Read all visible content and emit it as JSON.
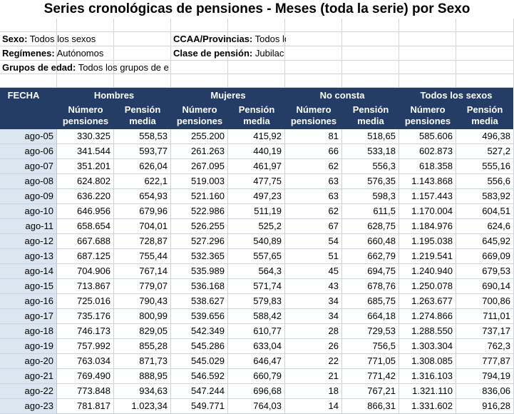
{
  "title": "Series cronológicas de pensiones - Meses (toda la serie) por Sexo",
  "filters": [
    {
      "label": "Sexo:",
      "value": "Todos los sexos"
    },
    {
      "label": "CCAA/Provincias:",
      "value": "Todos los centros"
    },
    {
      "label": "Regímenes:",
      "value": "Autónomos"
    },
    {
      "label": "Clase de pensión:",
      "value": "Jubilac"
    },
    {
      "label": "Grupos de edad:",
      "value": "Todos los grupos de e"
    }
  ],
  "table": {
    "first_header": "FECHA",
    "groups": [
      {
        "name": "Hombres",
        "columns": [
          "Número pensiones",
          "Pensión media"
        ]
      },
      {
        "name": "Mujeres",
        "columns": [
          "Número pensiones",
          "Pensión media"
        ]
      },
      {
        "name": "No consta",
        "columns": [
          "Número pensiones",
          "Pensión media"
        ]
      },
      {
        "name": "Todos los sexos",
        "columns": [
          "Número pensiones",
          "Pensión media"
        ]
      }
    ],
    "rows": [
      [
        "ago-05",
        "330.325",
        "558,53",
        "255.200",
        "415,92",
        "81",
        "518,65",
        "585.606",
        "496,38"
      ],
      [
        "ago-06",
        "341.544",
        "593,77",
        "261.263",
        "440,19",
        "66",
        "533,18",
        "602.873",
        "527,2"
      ],
      [
        "ago-07",
        "351.201",
        "626,04",
        "267.095",
        "461,97",
        "62",
        "556,3",
        "618.358",
        "555,16"
      ],
      [
        "ago-08",
        "624.802",
        "622,1",
        "519.003",
        "477,75",
        "63",
        "576,35",
        "1.143.868",
        "556,6"
      ],
      [
        "ago-09",
        "636.220",
        "654,93",
        "521.160",
        "497,23",
        "63",
        "598,3",
        "1.157.443",
        "583,92"
      ],
      [
        "ago-10",
        "646.956",
        "679,96",
        "522.986",
        "511,19",
        "62",
        "611,5",
        "1.170.004",
        "604,51"
      ],
      [
        "ago-11",
        "658.654",
        "704,01",
        "526.255",
        "525,2",
        "67",
        "628,75",
        "1.184.976",
        "624,6"
      ],
      [
        "ago-12",
        "667.688",
        "728,87",
        "527.296",
        "540,89",
        "54",
        "660,48",
        "1.195.038",
        "645,92"
      ],
      [
        "ago-13",
        "687.125",
        "755,44",
        "532.365",
        "557,65",
        "51",
        "662,79",
        "1.219.541",
        "669,09"
      ],
      [
        "ago-14",
        "704.906",
        "767,14",
        "535.989",
        "564,3",
        "45",
        "694,75",
        "1.240.940",
        "679,53"
      ],
      [
        "ago-15",
        "713.867",
        "779,07",
        "536.168",
        "571,74",
        "43",
        "678,76",
        "1.250.078",
        "690,14"
      ],
      [
        "ago-16",
        "725.016",
        "790,43",
        "538.627",
        "579,83",
        "34",
        "685,75",
        "1.263.677",
        "700,86"
      ],
      [
        "ago-17",
        "735.176",
        "800,99",
        "539.656",
        "588,42",
        "34",
        "664,18",
        "1.274.866",
        "711,01"
      ],
      [
        "ago-18",
        "746.173",
        "829,05",
        "542.349",
        "610,77",
        "28",
        "729,53",
        "1.288.550",
        "737,17"
      ],
      [
        "ago-19",
        "757.992",
        "855,28",
        "545.286",
        "633,04",
        "26",
        "756,5",
        "1.303.304",
        "762,3"
      ],
      [
        "ago-20",
        "763.034",
        "871,73",
        "545.029",
        "646,47",
        "22",
        "771,05",
        "1.308.085",
        "777,87"
      ],
      [
        "ago-21",
        "769.490",
        "888,95",
        "546.592",
        "660,79",
        "21",
        "771,42",
        "1.316.103",
        "794,19"
      ],
      [
        "ago-22",
        "773.848",
        "934,63",
        "547.244",
        "696,68",
        "18",
        "767,21",
        "1.321.110",
        "836,06"
      ],
      [
        "ago-23",
        "781.817",
        "1.023,34",
        "549.771",
        "764,03",
        "14",
        "866,31",
        "1.331.602",
        "916,28"
      ]
    ]
  }
}
